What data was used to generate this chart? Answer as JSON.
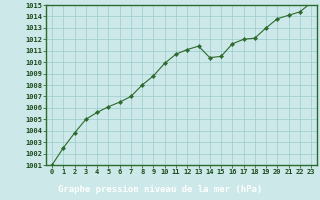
{
  "x": [
    0,
    1,
    2,
    3,
    4,
    5,
    6,
    7,
    8,
    9,
    10,
    11,
    12,
    13,
    14,
    15,
    16,
    17,
    18,
    19,
    20,
    21,
    22,
    23
  ],
  "y": [
    1001.0,
    1002.5,
    1003.8,
    1005.0,
    1005.6,
    1006.1,
    1006.5,
    1007.0,
    1008.0,
    1008.8,
    1009.9,
    1010.7,
    1011.1,
    1011.4,
    1010.4,
    1010.5,
    1011.6,
    1012.0,
    1012.1,
    1013.0,
    1013.8,
    1014.1,
    1014.4,
    1015.2
  ],
  "line_color": "#2d6a2d",
  "marker": "D",
  "marker_size": 2.2,
  "bg_color": "#cce8e8",
  "plot_bg_color": "#cce8e8",
  "grid_color": "#99cccc",
  "label_color": "#1a4a1a",
  "xlabel": "Graphe pression niveau de la mer (hPa)",
  "ylim_min": 1001,
  "ylim_max": 1015,
  "xlim_min": 0,
  "xlim_max": 23,
  "yticks": [
    1001,
    1002,
    1003,
    1004,
    1005,
    1006,
    1007,
    1008,
    1009,
    1010,
    1011,
    1012,
    1013,
    1014,
    1015
  ],
  "xticks": [
    0,
    1,
    2,
    3,
    4,
    5,
    6,
    7,
    8,
    9,
    10,
    11,
    12,
    13,
    14,
    15,
    16,
    17,
    18,
    19,
    20,
    21,
    22,
    23
  ],
  "tick_fontsize": 5.0,
  "xlabel_fontsize": 6.5,
  "spine_color": "#2d6a2d",
  "dark_bar_color": "#003300",
  "bottom_bg": "#004400"
}
